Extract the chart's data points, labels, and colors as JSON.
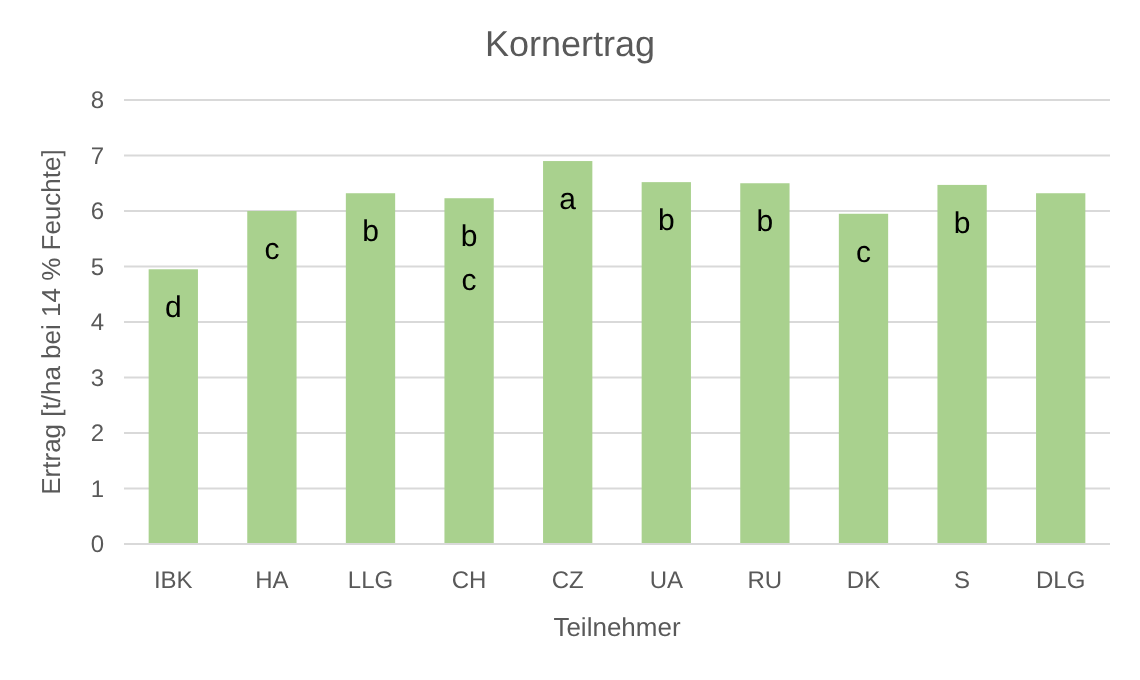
{
  "chart_data": {
    "type": "bar",
    "title": "Kornertrag",
    "xlabel": "Teilnehmer",
    "ylabel": "Ertrag [t/ha bei 14 % Feuchte]",
    "categories": [
      "IBK",
      "HA",
      "LLG",
      "CH",
      "CZ",
      "UA",
      "RU",
      "DK",
      "S",
      "DLG"
    ],
    "values": [
      4.95,
      6.0,
      6.32,
      6.23,
      6.9,
      6.52,
      6.5,
      5.95,
      6.47,
      6.32
    ],
    "color": "#a9d18e",
    "ylim": [
      0,
      8
    ],
    "yticks": [
      0,
      1,
      2,
      3,
      4,
      5,
      6,
      7,
      8
    ],
    "grid": "y",
    "value_labels": [
      "d",
      "c",
      "b",
      "b\nc",
      "a",
      "b",
      "b",
      "c",
      "b",
      null
    ]
  }
}
